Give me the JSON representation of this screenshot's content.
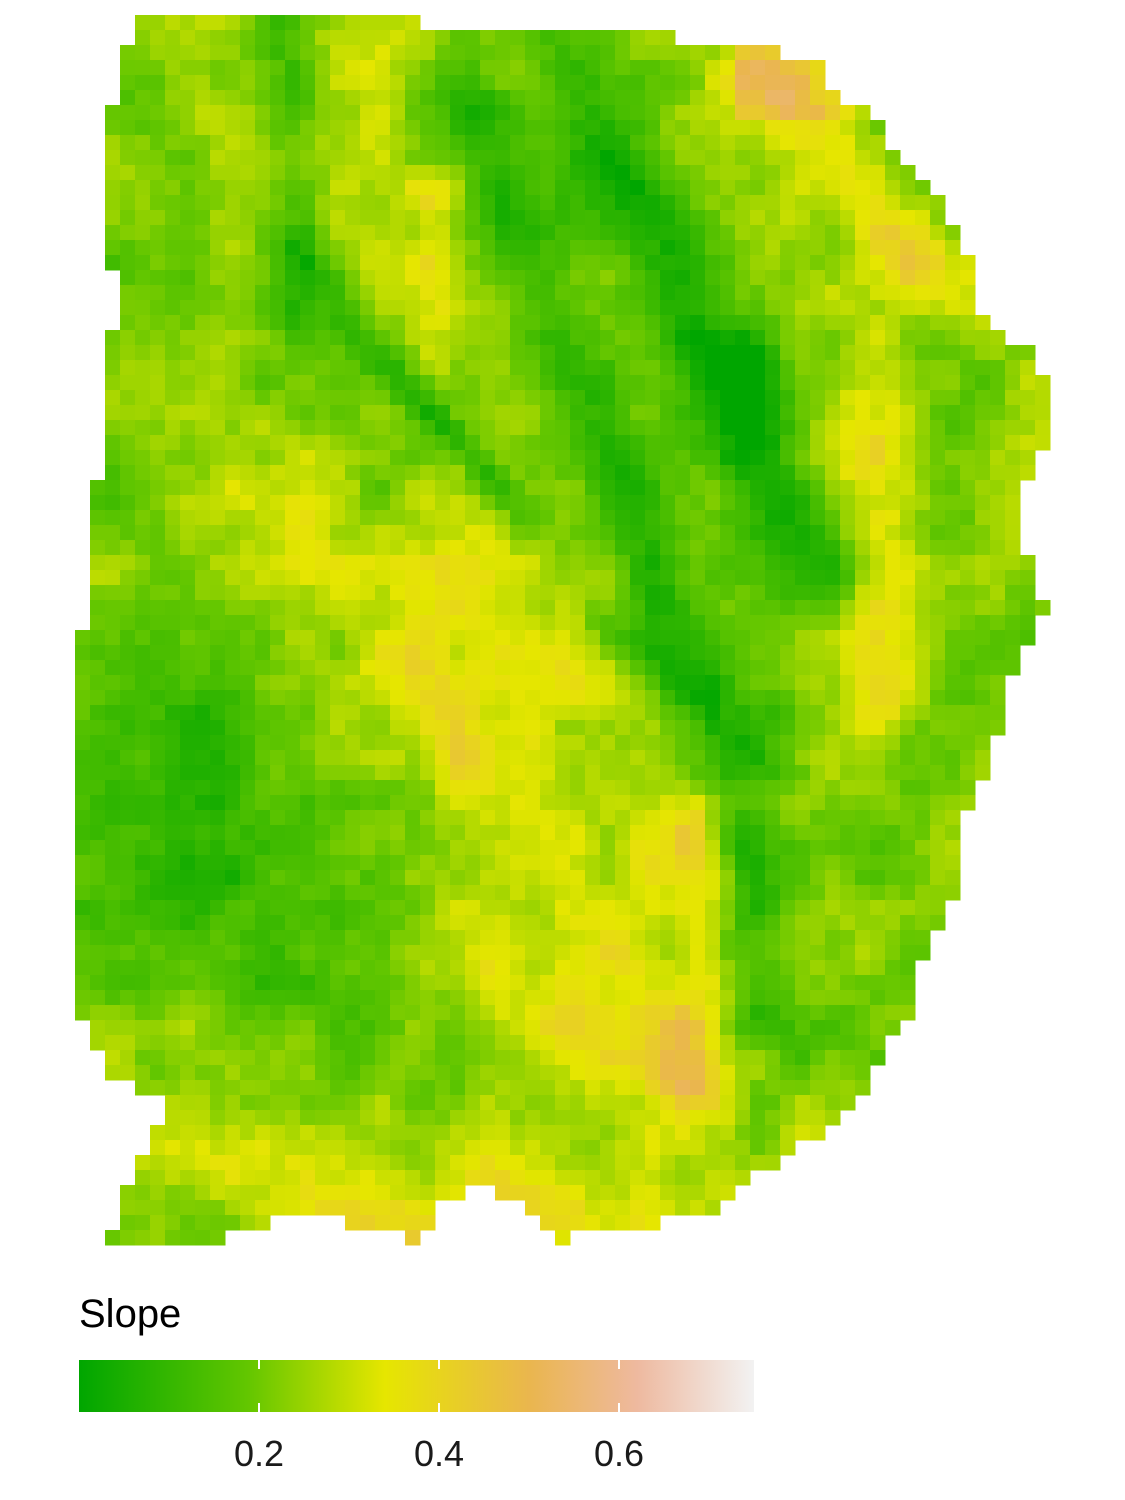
{
  "map": {
    "type": "raster",
    "variable": "Slope"
  },
  "legend": {
    "title": "Slope",
    "value_range": [
      0.0,
      0.75
    ],
    "ticks": [
      {
        "value": 0.2,
        "label": "0.2"
      },
      {
        "value": 0.4,
        "label": "0.4"
      },
      {
        "value": 0.6,
        "label": "0.6"
      }
    ],
    "color_stops": [
      {
        "value": 0.0,
        "color": "#00A600"
      },
      {
        "value": 0.1875,
        "color": "#63C600"
      },
      {
        "value": 0.34,
        "color": "#E6E600"
      },
      {
        "value": 0.5,
        "color": "#EAB64E"
      },
      {
        "value": 0.62,
        "color": "#EEB99F"
      },
      {
        "value": 0.75,
        "color": "#F2F2F2"
      }
    ]
  }
}
